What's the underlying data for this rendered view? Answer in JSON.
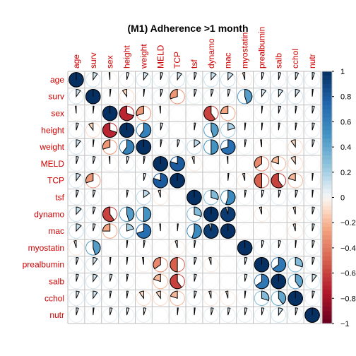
{
  "chart_data": {
    "type": "heatmap",
    "method": "pie",
    "title": "(M1) Adherence >1 month",
    "variables": [
      "age",
      "surv",
      "sex",
      "height",
      "weight",
      "MELD",
      "TCP",
      "tsf",
      "dynamo",
      "mac",
      "myostatin",
      "prealbumin",
      "salb",
      "cchol",
      "nutr"
    ],
    "matrix": [
      [
        1.0,
        0.1,
        -0.02,
        0.05,
        0.1,
        0.05,
        0.1,
        0.05,
        0.12,
        0.12,
        -0.05,
        0.05,
        0.05,
        0.07,
        0.05
      ],
      [
        0.1,
        1.0,
        0.02,
        -0.1,
        0.02,
        0.05,
        -0.3,
        0.05,
        0.05,
        0.05,
        0.45,
        0.1,
        0.1,
        0.1,
        0.02
      ],
      [
        -0.02,
        0.02,
        1.0,
        -0.7,
        -0.3,
        -0.02,
        0.0,
        0.0,
        -0.6,
        -0.25,
        0.0,
        0.02,
        0.05,
        0.03,
        0.05
      ],
      [
        0.05,
        -0.1,
        -0.7,
        1.0,
        0.6,
        0.05,
        0.0,
        0.03,
        0.45,
        0.2,
        0.02,
        0.02,
        0.03,
        0.03,
        0.05
      ],
      [
        0.1,
        0.02,
        -0.3,
        0.6,
        1.0,
        0.03,
        0.05,
        0.15,
        0.5,
        0.7,
        0.03,
        -0.03,
        0.0,
        -0.1,
        0.05
      ],
      [
        0.05,
        0.05,
        -0.02,
        0.05,
        0.03,
        1.0,
        0.8,
        -0.05,
        0.0,
        -0.02,
        0.0,
        -0.35,
        -0.2,
        -0.1,
        0.0
      ],
      [
        0.1,
        -0.3,
        0.0,
        0.0,
        0.05,
        0.8,
        1.0,
        0.0,
        0.0,
        0.02,
        -0.05,
        -0.5,
        -0.6,
        -0.2,
        0.02
      ],
      [
        0.05,
        0.05,
        0.0,
        0.03,
        0.15,
        -0.05,
        0.0,
        1.0,
        0.3,
        0.55,
        0.03,
        0.05,
        0.05,
        0.05,
        0.02
      ],
      [
        0.12,
        0.05,
        -0.6,
        0.45,
        0.5,
        0.0,
        0.0,
        0.3,
        1.0,
        0.95,
        0.0,
        -0.05,
        0.0,
        -0.05,
        0.05
      ],
      [
        0.12,
        0.05,
        -0.25,
        0.2,
        0.7,
        -0.02,
        0.02,
        0.55,
        0.95,
        1.0,
        0.0,
        0.0,
        0.0,
        -0.05,
        0.05
      ],
      [
        -0.05,
        0.45,
        0.0,
        0.02,
        0.03,
        0.0,
        -0.05,
        0.03,
        0.0,
        0.0,
        1.0,
        0.05,
        0.05,
        0.02,
        0.05
      ],
      [
        0.05,
        0.1,
        0.02,
        0.02,
        -0.03,
        -0.35,
        -0.5,
        0.05,
        -0.05,
        0.0,
        0.05,
        1.0,
        0.65,
        0.3,
        0.05
      ],
      [
        0.05,
        0.1,
        0.05,
        0.03,
        0.0,
        -0.2,
        -0.6,
        0.05,
        0.0,
        0.0,
        0.05,
        0.65,
        1.0,
        0.4,
        0.1
      ],
      [
        0.07,
        0.1,
        0.03,
        0.03,
        -0.1,
        -0.1,
        -0.2,
        0.05,
        -0.05,
        -0.05,
        0.02,
        0.3,
        0.4,
        1.0,
        0.05
      ],
      [
        0.05,
        0.02,
        0.05,
        0.05,
        0.05,
        0.0,
        0.02,
        0.02,
        0.05,
        0.05,
        0.05,
        0.05,
        0.1,
        0.05,
        1.0
      ]
    ],
    "colorbar": {
      "range": [
        -1,
        1
      ],
      "ticks": [
        "1",
        "0.8",
        "0.6",
        "0.4",
        "0.2",
        "0",
        "−0.2",
        "−0.4",
        "−0.6",
        "−0.8",
        "−1"
      ],
      "colors": {
        "negative": "#67001F",
        "neutral": "#F7F7F7",
        "positive": "#053061"
      }
    },
    "grid": true,
    "legend_position": "right"
  }
}
